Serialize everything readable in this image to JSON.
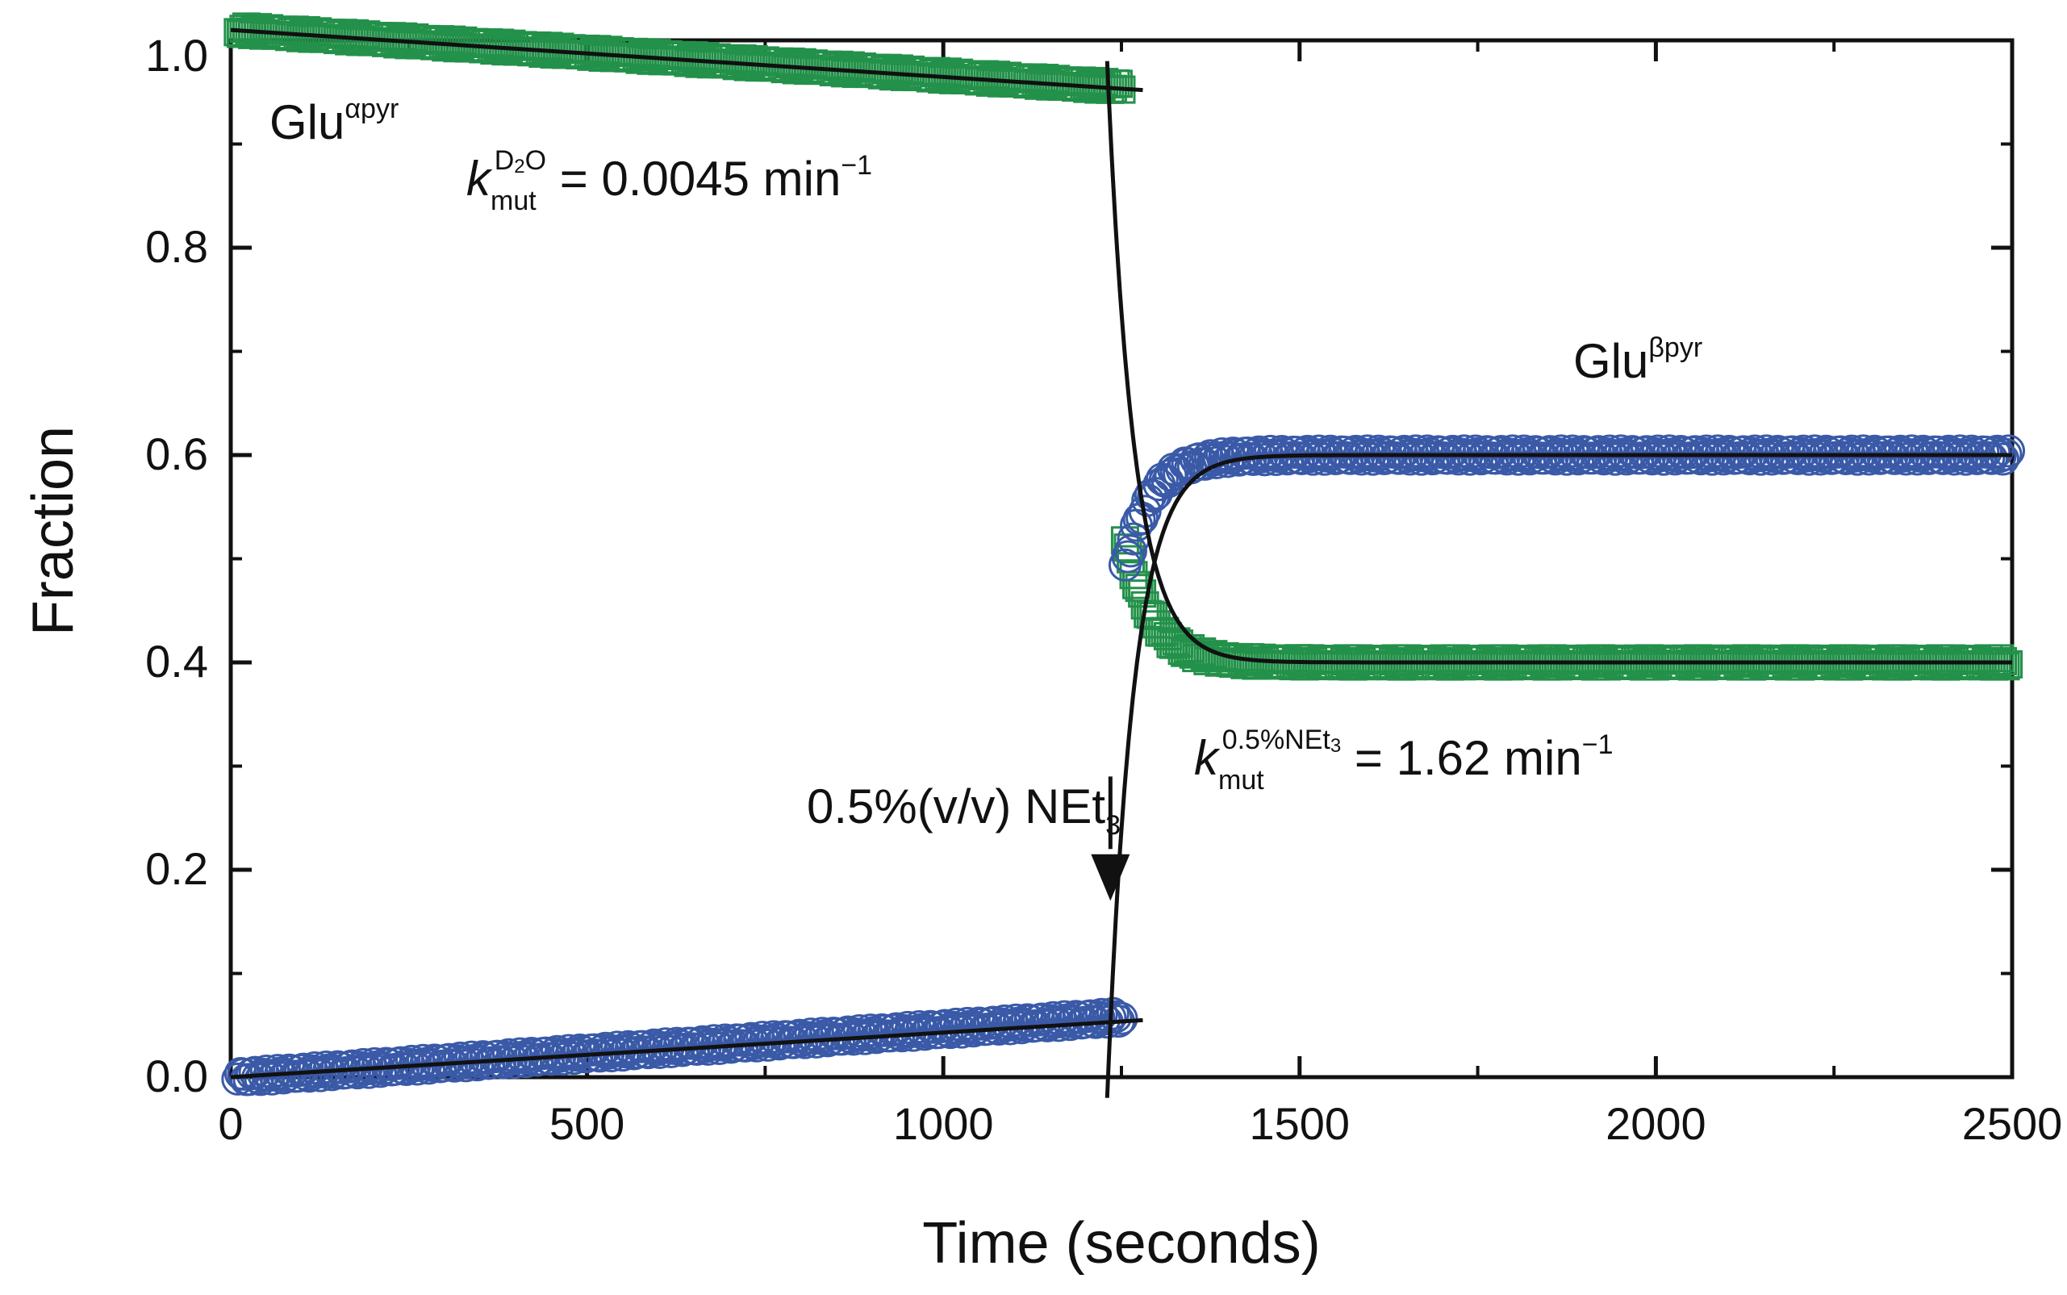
{
  "chart_data": {
    "type": "scatter",
    "title": "",
    "xlabel": "Time (seconds)",
    "ylabel": "Fraction",
    "xlim": [
      0,
      2500
    ],
    "ylim": [
      0,
      1.0
    ],
    "xticks": [
      0,
      500,
      1000,
      1500,
      2000,
      2500
    ],
    "xtick_labels": [
      "0",
      "500",
      "1000",
      "1500",
      "2000",
      "2500"
    ],
    "yticks": [
      0.0,
      0.2,
      0.4,
      0.6,
      0.8,
      1.0
    ],
    "ytick_labels": [
      "0.0",
      "0.2",
      "0.4",
      "0.6",
      "0.8",
      "1.0"
    ],
    "grid": false,
    "addition_time": 1230,
    "series": [
      {
        "name": "Glu α-pyr",
        "marker": "square",
        "color": "#23914a",
        "segments": [
          {
            "t_start": 10,
            "t_end": 1250,
            "model": "linear",
            "y0": 1.01,
            "y1": 0.955
          },
          {
            "t_start": 1255,
            "t_end": 2495,
            "model": "exp",
            "t0": 1255,
            "start": 0.52,
            "plateau": 0.4,
            "k_per_s": 0.027
          }
        ]
      },
      {
        "name": "Glu β-pyr",
        "marker": "circle",
        "color": "#3a5aa8",
        "segments": [
          {
            "t_start": 10,
            "t_end": 1250,
            "model": "linear",
            "y0": 0.0,
            "y1": 0.058
          },
          {
            "t_start": 1255,
            "t_end": 2495,
            "model": "exp",
            "t0": 1255,
            "start": 0.49,
            "plateau": 0.6,
            "k_per_s": 0.027
          }
        ]
      }
    ],
    "fits": [
      {
        "name": "alpha-linear-fit",
        "model": "linear",
        "t_start": 0,
        "t_end": 1280,
        "y0": 1.01,
        "y1": 0.952
      },
      {
        "name": "beta-linear-fit",
        "model": "linear",
        "t_start": 0,
        "t_end": 1280,
        "y0": 0.0,
        "y1": 0.055
      },
      {
        "name": "alpha-exp-fit",
        "model": "exp",
        "t0": 1230,
        "start": 0.98,
        "plateau": 0.4,
        "k_per_s": 0.027,
        "t_start": 1230,
        "t_end": 2500
      },
      {
        "name": "beta-exp-fit",
        "model": "exp",
        "t0": 1230,
        "start": -0.02,
        "plateau": 0.6,
        "k_per_s": 0.027,
        "t_start": 1230,
        "t_end": 2500
      }
    ],
    "annotations": {
      "glu_alpha": {
        "base": "Glu",
        "sup": "αpyr"
      },
      "glu_beta": {
        "base": "Glu",
        "sup": "βpyr"
      },
      "k_d2o": {
        "k": "k",
        "sub": "mut",
        "sup_a": "D",
        "sup_b": "2",
        "sup_c": "O",
        "value": " = 0.0045 min",
        "unit_sup": "−1"
      },
      "k_net3": {
        "k": "k",
        "sub": "mut",
        "sup_a": "0.5%NEt",
        "sup_b": "3",
        "value": " = 1.62 min",
        "unit_sup": "−1"
      },
      "arrow_label": {
        "text": "0.5%(v/v) NEt",
        "sub": "3"
      }
    }
  }
}
